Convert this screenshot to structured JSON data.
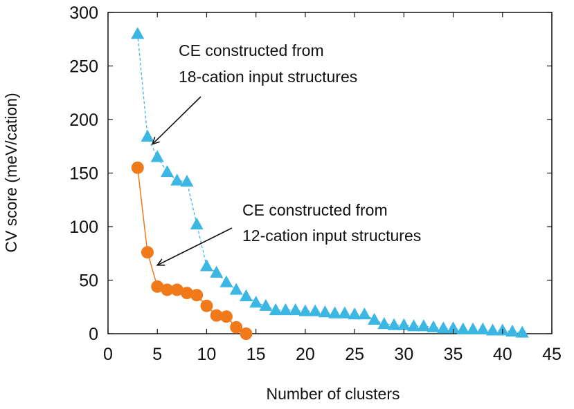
{
  "chart_data": {
    "type": "scatter",
    "xlabel": "Number of clusters",
    "ylabel": "CV score (meV/cation)",
    "xlim": [
      0,
      45
    ],
    "ylim": [
      0,
      300
    ],
    "xticks": [
      0,
      5,
      10,
      15,
      20,
      25,
      30,
      35,
      40,
      45
    ],
    "yticks": [
      0,
      50,
      100,
      150,
      200,
      250,
      300
    ],
    "grid": false,
    "series": [
      {
        "name": "18-cation input structures",
        "marker": "triangle",
        "line": "dashed",
        "color": "#3cb6e3",
        "x": [
          3,
          4,
          5,
          6,
          7,
          8,
          9,
          10,
          11,
          12,
          13,
          14,
          15,
          16,
          17,
          18,
          19,
          20,
          21,
          22,
          23,
          24,
          25,
          26,
          27,
          28,
          29,
          30,
          31,
          32,
          33,
          34,
          35,
          36,
          37,
          38,
          39,
          40,
          41,
          42
        ],
        "y": [
          280,
          184,
          165,
          151,
          143,
          142,
          102,
          63,
          57,
          48,
          41,
          35,
          29,
          26,
          22,
          22,
          22,
          21,
          21,
          20,
          19,
          19,
          18,
          18,
          13,
          9,
          8,
          8,
          7,
          7,
          6,
          5,
          5,
          4,
          4,
          4,
          3,
          3,
          2,
          1
        ]
      },
      {
        "name": "12-cation input structures",
        "marker": "circle",
        "line": "solid",
        "color": "#f07a1a",
        "x": [
          3,
          4,
          5,
          6,
          7,
          8,
          9,
          10,
          11,
          12,
          13,
          14
        ],
        "y": [
          155,
          76,
          44,
          41,
          41,
          38,
          36,
          26,
          17,
          16,
          6,
          0
        ]
      }
    ],
    "annotations": [
      {
        "line1": "CE constructed from",
        "line2": "18-cation input structures",
        "target_x": 4.5,
        "target_y": 177
      },
      {
        "line1": "CE constructed from",
        "line2": "12-cation input structures",
        "target_x": 5,
        "target_y": 64
      }
    ]
  }
}
